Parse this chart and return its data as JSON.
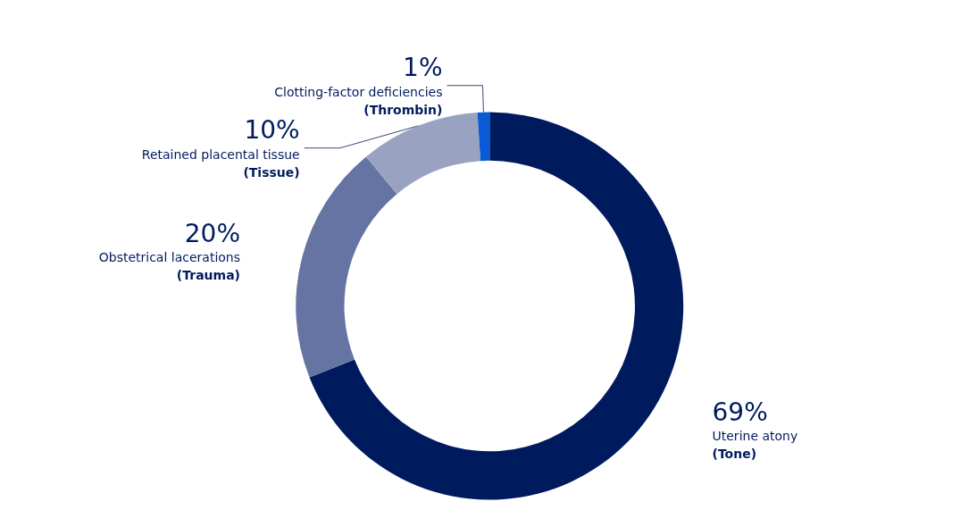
{
  "chart_data": {
    "type": "donut",
    "categories": [
      "Uterine atony\n(Tone)",
      "Obstetrical lacerations\n(Trauma)",
      "Retained placental tissue\n(Tissue)",
      "Clotting-factor deficiencies\n(Thrombin)"
    ],
    "values": [
      69,
      20,
      10,
      1
    ],
    "colors": [
      "#001a5e",
      "#6674a3",
      "#99a3c1",
      "#0a5ad6"
    ],
    "value_labels": [
      "69%",
      "20%",
      "10%",
      "1%"
    ],
    "legend": false
  }
}
